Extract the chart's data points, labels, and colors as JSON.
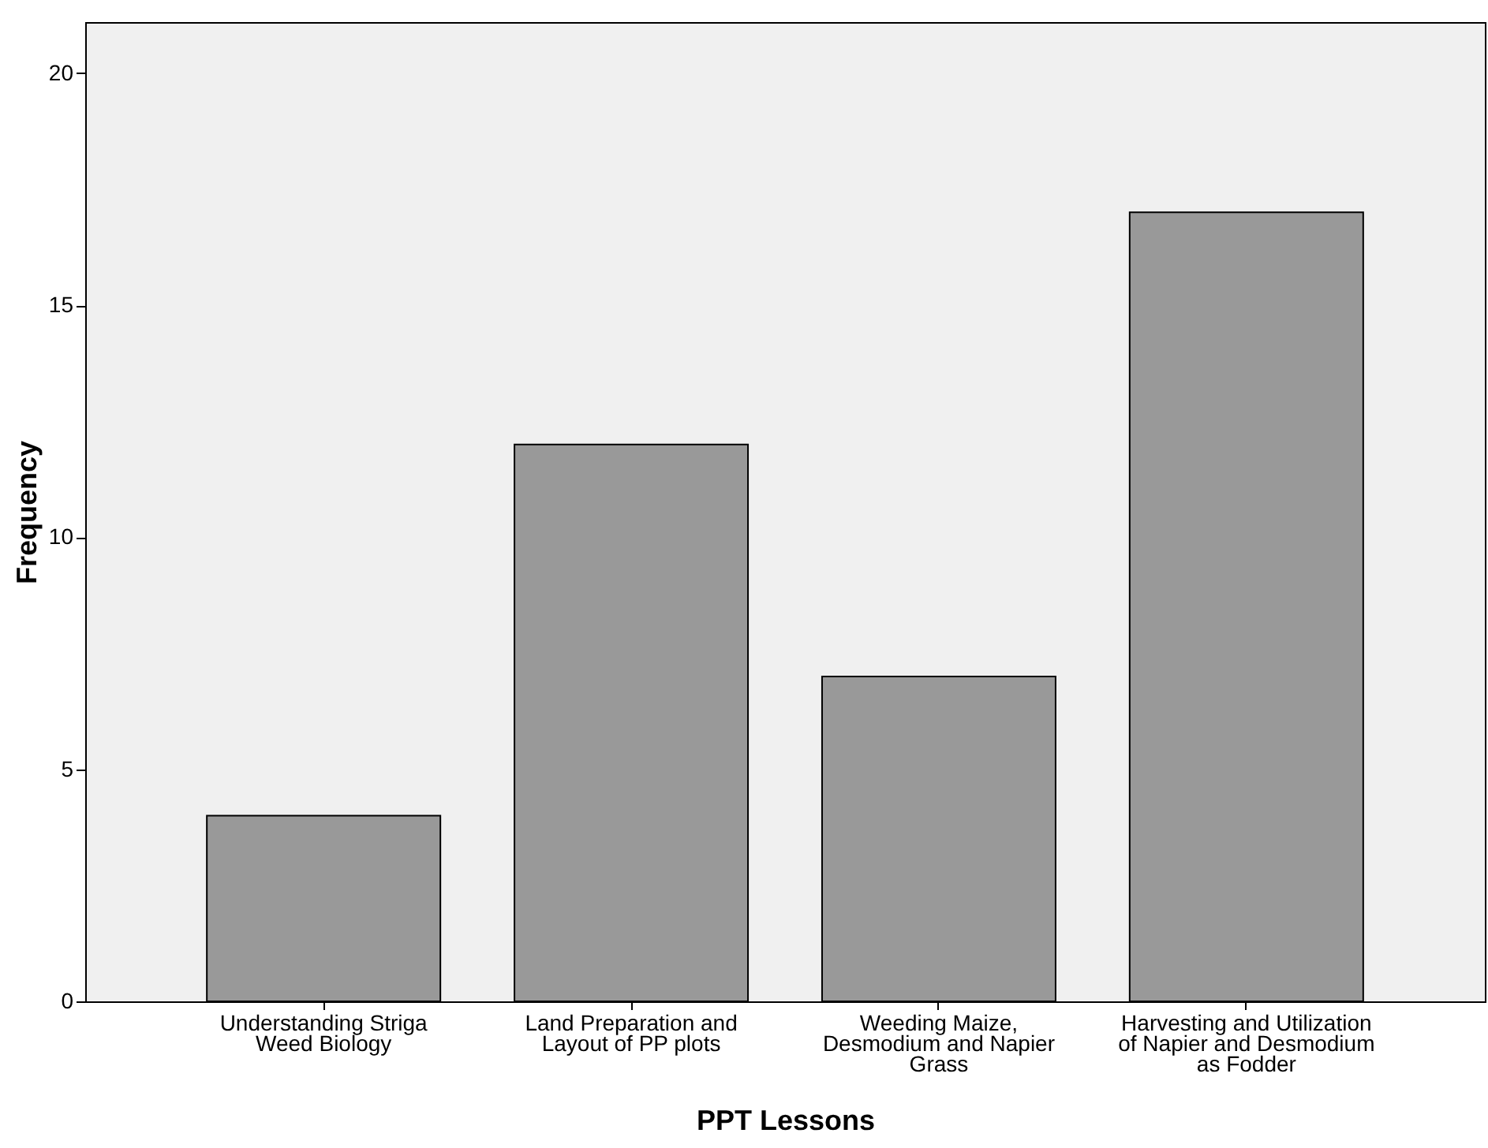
{
  "chart_data": {
    "type": "bar",
    "categories": [
      "Understanding Striga\nWeed Biology",
      "Land Preparation and\nLayout of PP plots",
      "Weeding Maize,\nDesmodium and Napier\nGrass",
      "Harvesting and Utilization\nof  Napier and Desmodium\nas Fodder"
    ],
    "values": [
      4,
      12,
      7,
      17
    ],
    "color": "#999999",
    "xlabel": "PPT Lessons",
    "ylabel": "Frequency",
    "ylim": [
      0,
      21.1
    ],
    "yticks": [
      0,
      5,
      10,
      15,
      20
    ],
    "grid": false
  }
}
